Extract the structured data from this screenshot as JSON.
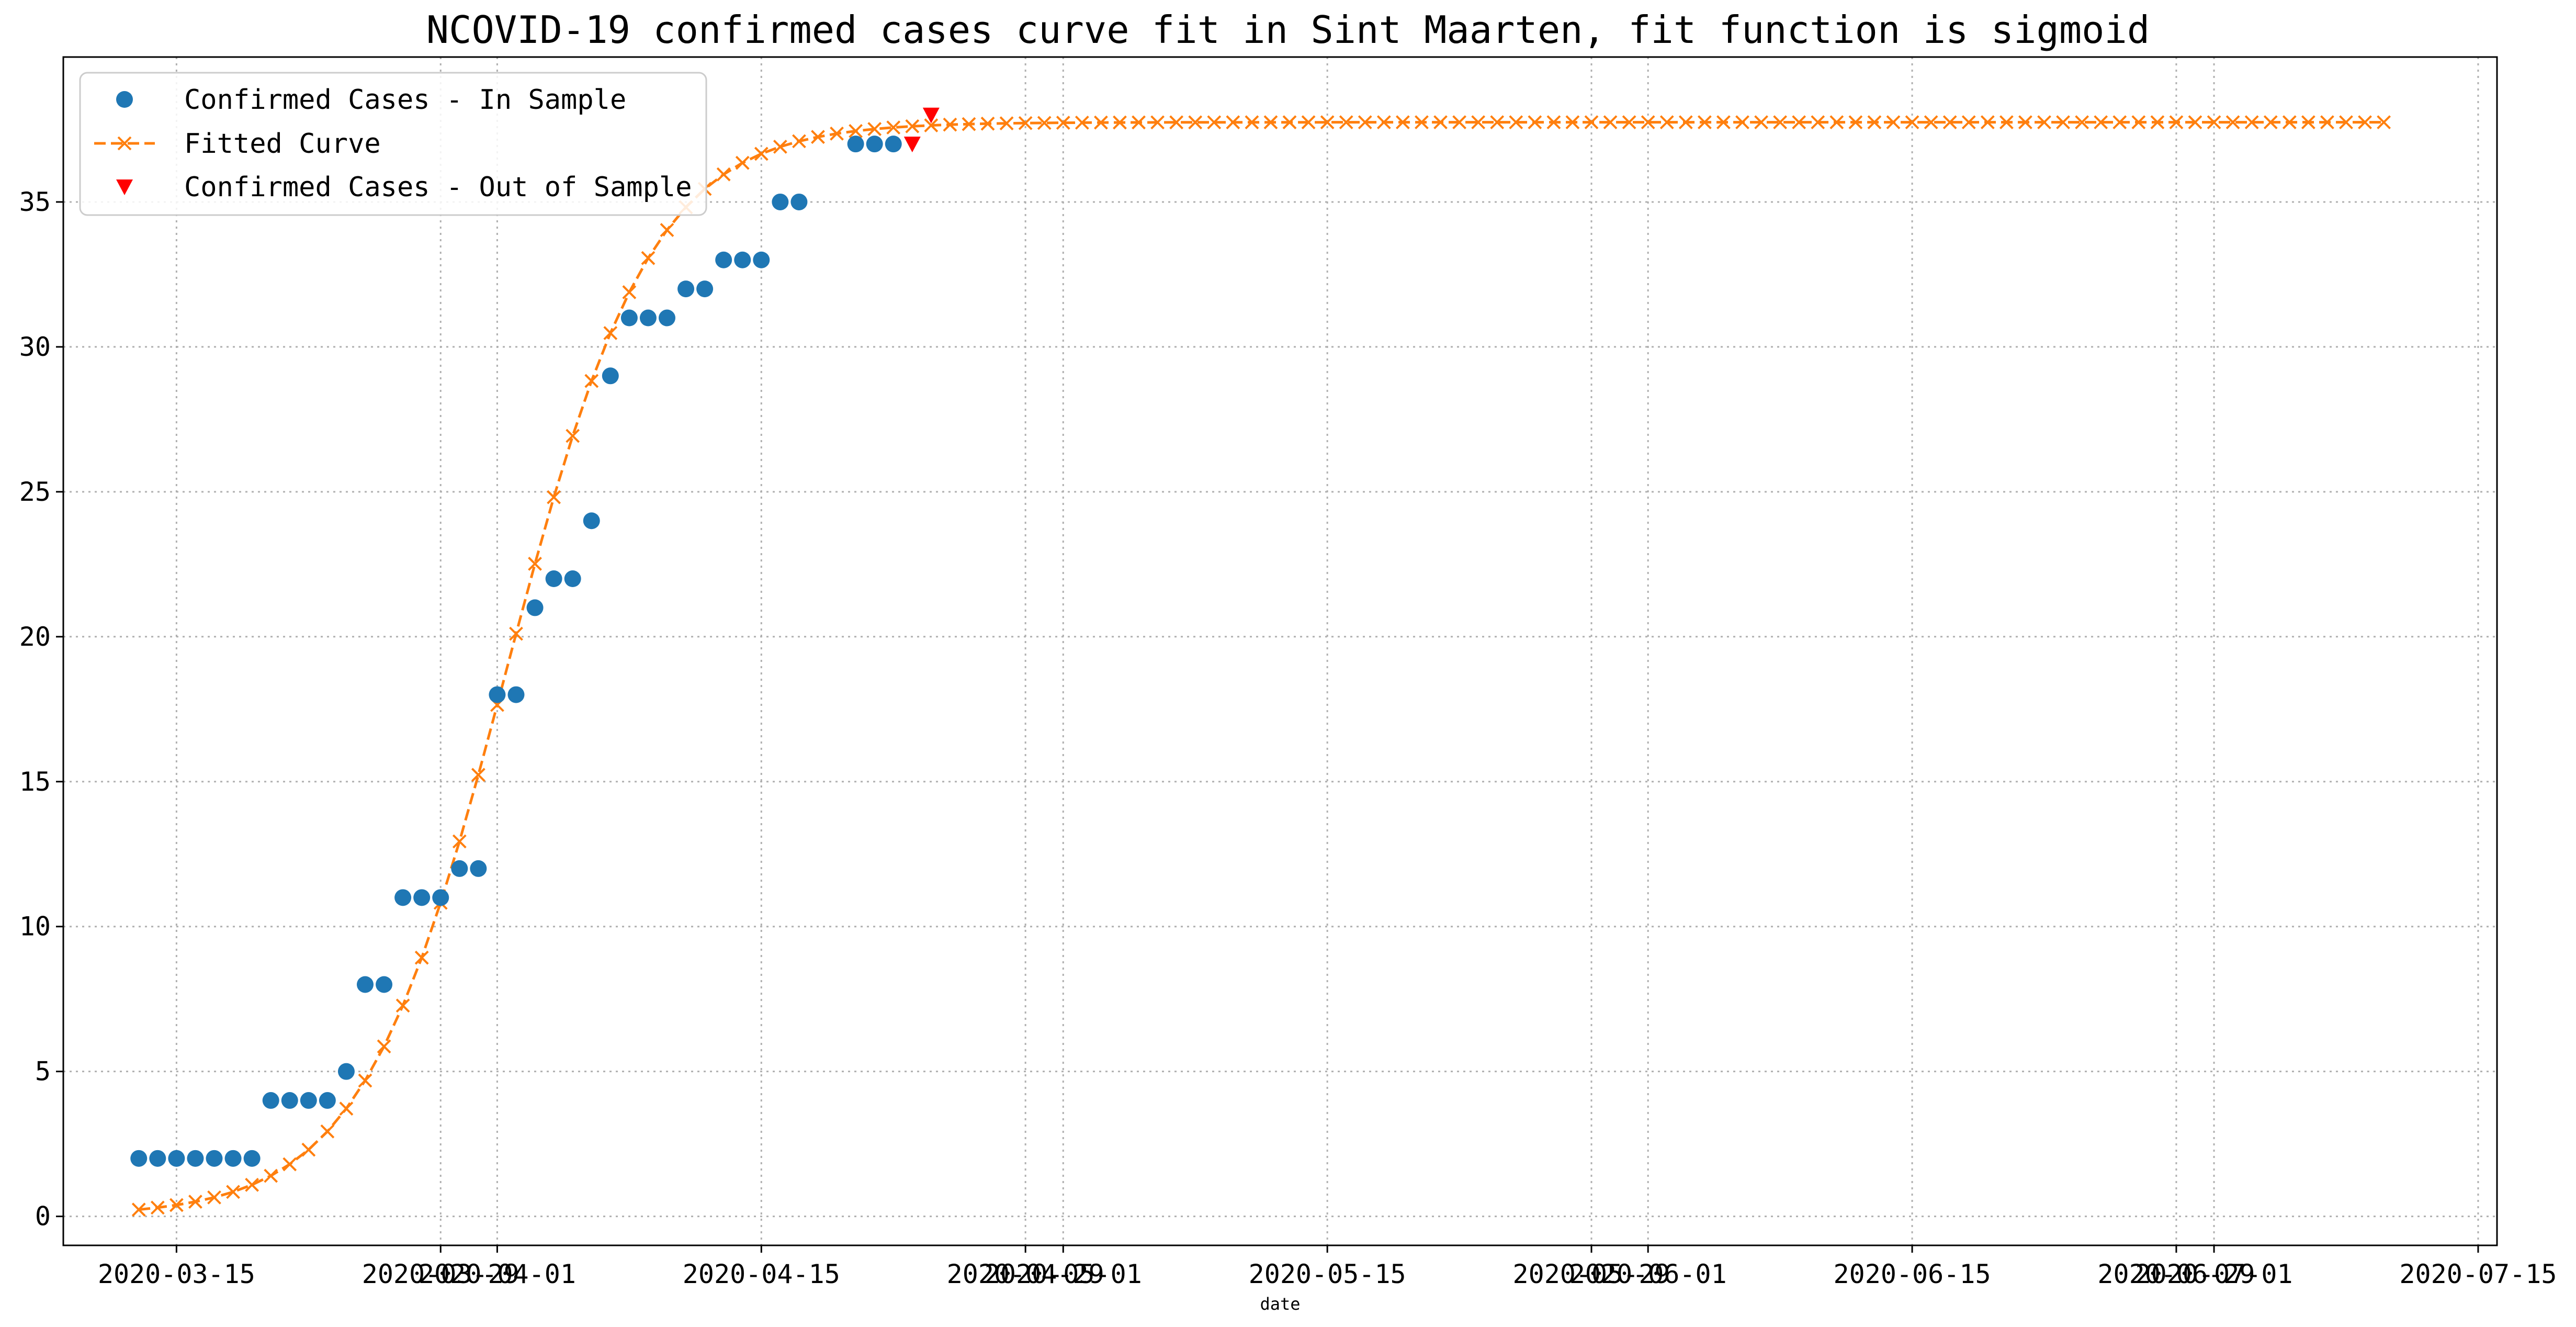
{
  "chart_data": {
    "type": "line",
    "title": "NCOVID-19 confirmed cases curve fit in Sint Maarten, fit function is sigmoid",
    "xlabel": "date",
    "ylabel": "",
    "x_domain": [
      "2020-03-09",
      "2020-07-16"
    ],
    "ylim": [
      -1,
      40
    ],
    "grid": true,
    "legend_position": "top-left",
    "x_ticks": [
      {
        "date": "2020-03-15",
        "label": "2020-03-15"
      },
      {
        "date": "2020-03-29",
        "label": "2020-03-29"
      },
      {
        "date": "2020-04-01",
        "label": "2020-04-01"
      },
      {
        "date": "2020-04-15",
        "label": "2020-04-15"
      },
      {
        "date": "2020-04-29",
        "label": "2020-04-29"
      },
      {
        "date": "2020-05-01",
        "label": "2020-05-01"
      },
      {
        "date": "2020-05-15",
        "label": "2020-05-15"
      },
      {
        "date": "2020-05-29",
        "label": "2020-05-29"
      },
      {
        "date": "2020-06-01",
        "label": "2020-06-01"
      },
      {
        "date": "2020-06-15",
        "label": "2020-06-15"
      },
      {
        "date": "2020-06-29",
        "label": "2020-06-29"
      },
      {
        "date": "2020-07-01",
        "label": "2020-07-01"
      },
      {
        "date": "2020-07-15",
        "label": "2020-07-15"
      }
    ],
    "y_ticks": [
      0,
      5,
      10,
      15,
      20,
      25,
      30,
      35
    ],
    "series": [
      {
        "name": "Confirmed Cases - In Sample",
        "kind": "scatter",
        "marker": "circle",
        "color": "#1f77b4",
        "x": [
          "2020-03-13",
          "2020-03-14",
          "2020-03-15",
          "2020-03-16",
          "2020-03-17",
          "2020-03-18",
          "2020-03-19",
          "2020-03-20",
          "2020-03-21",
          "2020-03-22",
          "2020-03-23",
          "2020-03-24",
          "2020-03-25",
          "2020-03-26",
          "2020-03-27",
          "2020-03-28",
          "2020-03-29",
          "2020-03-30",
          "2020-03-31",
          "2020-04-01",
          "2020-04-02",
          "2020-04-03",
          "2020-04-04",
          "2020-04-05",
          "2020-04-06",
          "2020-04-07",
          "2020-04-08",
          "2020-04-09",
          "2020-04-10",
          "2020-04-11",
          "2020-04-12",
          "2020-04-13",
          "2020-04-14",
          "2020-04-15",
          "2020-04-16",
          "2020-04-17",
          "2020-04-20",
          "2020-04-21",
          "2020-04-22"
        ],
        "y": [
          2,
          2,
          2,
          2,
          2,
          2,
          2,
          4,
          4,
          4,
          4,
          5,
          8,
          8,
          11,
          11,
          11,
          12,
          12,
          18,
          18,
          21,
          22,
          22,
          24,
          29,
          31,
          31,
          31,
          32,
          32,
          33,
          33,
          33,
          35,
          35,
          37,
          37,
          37
        ]
      },
      {
        "name": "Fitted Curve",
        "kind": "line",
        "marker": "x",
        "line_style": "dashed",
        "color": "#ff7f0e",
        "sigmoid": {
          "L": 37.75,
          "k": 0.2605,
          "x0": "2020-04-01",
          "x0_offset_days": 0.5
        },
        "x_start": "2020-03-13",
        "x_end": "2020-07-10"
      },
      {
        "name": "Confirmed Cases - Out of Sample",
        "kind": "scatter",
        "marker": "triangle-down",
        "color": "#ff0000",
        "x": [
          "2020-04-23",
          "2020-04-24"
        ],
        "y": [
          37,
          38
        ]
      }
    ]
  }
}
